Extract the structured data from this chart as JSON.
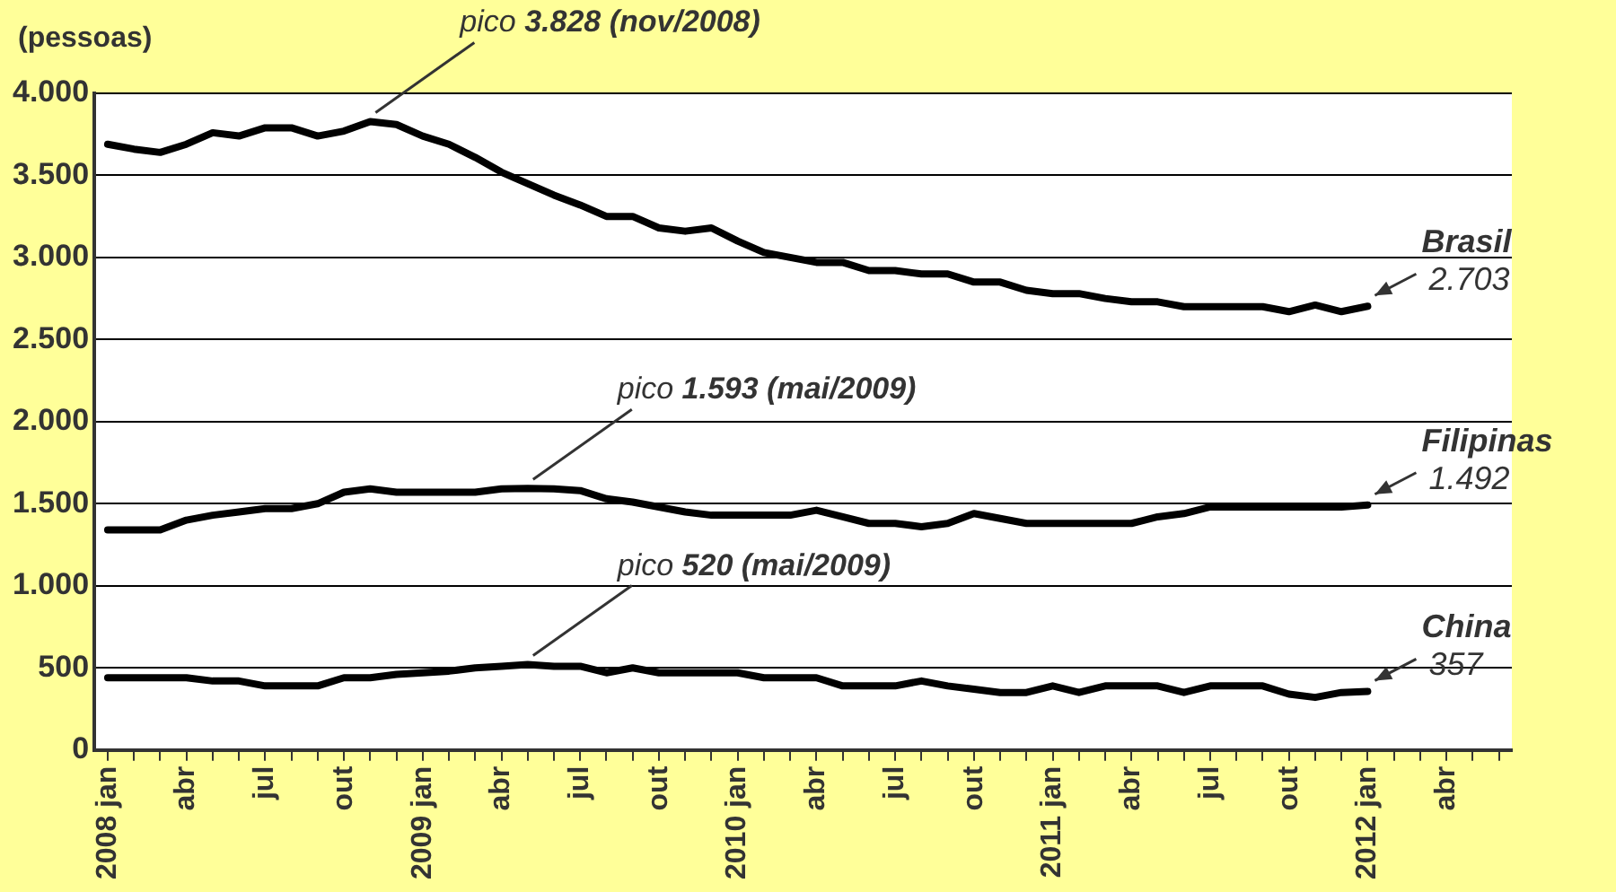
{
  "chart_data": {
    "type": "line",
    "ylabel": "(pessoas)",
    "x": [
      "2008-01",
      "2008-02",
      "2008-03",
      "2008-04",
      "2008-05",
      "2008-06",
      "2008-07",
      "2008-08",
      "2008-09",
      "2008-10",
      "2008-11",
      "2008-12",
      "2009-01",
      "2009-02",
      "2009-03",
      "2009-04",
      "2009-05",
      "2009-06",
      "2009-07",
      "2009-08",
      "2009-09",
      "2009-10",
      "2009-11",
      "2009-12",
      "2010-01",
      "2010-02",
      "2010-03",
      "2010-04",
      "2010-05",
      "2010-06",
      "2010-07",
      "2010-08",
      "2010-09",
      "2010-10",
      "2010-11",
      "2010-12",
      "2011-01",
      "2011-02",
      "2011-03",
      "2011-04",
      "2011-05",
      "2011-06",
      "2011-07",
      "2011-08",
      "2011-09",
      "2011-10",
      "2011-11",
      "2011-12",
      "2012-01"
    ],
    "series": [
      {
        "name": "Brasil",
        "color": "#000000",
        "values": [
          3690,
          3660,
          3640,
          3690,
          3760,
          3740,
          3790,
          3790,
          3740,
          3770,
          3828,
          3810,
          3740,
          3690,
          3610,
          3520,
          3450,
          3380,
          3320,
          3250,
          3250,
          3180,
          3160,
          3180,
          3100,
          3030,
          3000,
          2970,
          2970,
          2920,
          2920,
          2900,
          2900,
          2850,
          2850,
          2800,
          2780,
          2780,
          2750,
          2730,
          2730,
          2700,
          2700,
          2700,
          2700,
          2670,
          2710,
          2670,
          2703
        ],
        "value_labels": [
          null,
          null,
          null,
          null,
          null,
          null,
          null,
          null,
          null,
          null,
          null,
          null,
          null,
          null,
          null,
          null,
          null,
          null,
          null,
          null,
          null,
          null,
          null,
          null,
          null,
          null,
          null,
          null,
          null,
          null,
          null,
          null,
          null,
          null,
          null,
          null,
          null,
          null,
          null,
          null,
          null,
          null,
          null,
          null,
          null,
          null,
          null,
          null,
          "2.703"
        ]
      },
      {
        "name": "Filipinas",
        "color": "#000000",
        "values": [
          1340,
          1340,
          1340,
          1400,
          1430,
          1450,
          1470,
          1470,
          1500,
          1570,
          1590,
          1570,
          1570,
          1570,
          1570,
          1590,
          1593,
          1590,
          1580,
          1530,
          1510,
          1480,
          1450,
          1430,
          1430,
          1430,
          1430,
          1460,
          1420,
          1380,
          1380,
          1360,
          1380,
          1440,
          1410,
          1380,
          1380,
          1380,
          1380,
          1380,
          1420,
          1440,
          1480,
          1480,
          1480,
          1480,
          1480,
          1480,
          1492
        ],
        "value_labels": [
          null,
          null,
          null,
          null,
          null,
          null,
          null,
          null,
          null,
          null,
          null,
          null,
          null,
          null,
          null,
          null,
          null,
          null,
          null,
          null,
          null,
          null,
          null,
          null,
          null,
          null,
          null,
          null,
          null,
          null,
          null,
          null,
          null,
          null,
          null,
          null,
          null,
          null,
          null,
          null,
          null,
          null,
          null,
          null,
          null,
          null,
          null,
          null,
          "1.492"
        ]
      },
      {
        "name": "China",
        "color": "#000000",
        "values": [
          440,
          440,
          440,
          440,
          420,
          420,
          390,
          390,
          390,
          440,
          440,
          460,
          470,
          480,
          500,
          510,
          520,
          510,
          510,
          470,
          500,
          470,
          470,
          470,
          470,
          440,
          440,
          440,
          390,
          390,
          390,
          420,
          390,
          370,
          350,
          350,
          390,
          350,
          390,
          390,
          390,
          350,
          390,
          390,
          390,
          340,
          320,
          350,
          357
        ],
        "value_labels": [
          null,
          null,
          null,
          null,
          null,
          null,
          null,
          null,
          null,
          null,
          null,
          null,
          null,
          null,
          null,
          null,
          null,
          null,
          null,
          null,
          null,
          null,
          null,
          null,
          null,
          null,
          null,
          null,
          null,
          null,
          null,
          null,
          null,
          null,
          null,
          null,
          null,
          null,
          null,
          null,
          null,
          null,
          null,
          null,
          null,
          null,
          null,
          null,
          "357"
        ]
      }
    ],
    "annotations": [
      {
        "text": "pico 3.828 (nov/2008)",
        "x": "2008-11",
        "y": 3828
      },
      {
        "text": "pico 1.593 (mai/2009)",
        "x": "2009-05",
        "y": 1593
      },
      {
        "text": "pico 520 (mai/2009)",
        "x": "2009-05",
        "y": 520
      }
    ],
    "xlim": [
      "2007-12-16",
      "2012-06-16"
    ],
    "xticks": [
      {
        "value": "2008-01",
        "label": "2008 jan"
      },
      {
        "value": "2008-02",
        "label": null
      },
      {
        "value": "2008-03",
        "label": null
      },
      {
        "value": "2008-04",
        "label": "abr"
      },
      {
        "value": "2008-05",
        "label": null
      },
      {
        "value": "2008-06",
        "label": null
      },
      {
        "value": "2008-07",
        "label": "jul"
      },
      {
        "value": "2008-08",
        "label": null
      },
      {
        "value": "2008-09",
        "label": null
      },
      {
        "value": "2008-10",
        "label": "out"
      },
      {
        "value": "2008-11",
        "label": null
      },
      {
        "value": "2008-12",
        "label": null
      },
      {
        "value": "2009-01",
        "label": "2009 jan"
      },
      {
        "value": "2009-02",
        "label": null
      },
      {
        "value": "2009-03",
        "label": null
      },
      {
        "value": "2009-04",
        "label": "abr"
      },
      {
        "value": "2009-05",
        "label": null
      },
      {
        "value": "2009-06",
        "label": null
      },
      {
        "value": "2009-07",
        "label": "jul"
      },
      {
        "value": "2009-08",
        "label": null
      },
      {
        "value": "2009-09",
        "label": null
      },
      {
        "value": "2009-10",
        "label": "out"
      },
      {
        "value": "2009-11",
        "label": null
      },
      {
        "value": "2009-12",
        "label": null
      },
      {
        "value": "2010-01",
        "label": "2010 jan"
      },
      {
        "value": "2010-02",
        "label": null
      },
      {
        "value": "2010-03",
        "label": null
      },
      {
        "value": "2010-04",
        "label": "abr"
      },
      {
        "value": "2010-05",
        "label": null
      },
      {
        "value": "2010-06",
        "label": null
      },
      {
        "value": "2010-07",
        "label": "jul"
      },
      {
        "value": "2010-08",
        "label": null
      },
      {
        "value": "2010-09",
        "label": null
      },
      {
        "value": "2010-10",
        "label": "out"
      },
      {
        "value": "2010-11",
        "label": null
      },
      {
        "value": "2010-12",
        "label": null
      },
      {
        "value": "2011-01",
        "label": "2011 jan"
      },
      {
        "value": "2011-02",
        "label": null
      },
      {
        "value": "2011-03",
        "label": null
      },
      {
        "value": "2011-04",
        "label": "abr"
      },
      {
        "value": "2011-05",
        "label": null
      },
      {
        "value": "2011-06",
        "label": null
      },
      {
        "value": "2011-07",
        "label": "jul"
      },
      {
        "value": "2011-08",
        "label": null
      },
      {
        "value": "2011-09",
        "label": null
      },
      {
        "value": "2011-10",
        "label": "out"
      },
      {
        "value": "2011-11",
        "label": null
      },
      {
        "value": "2011-12",
        "label": null
      },
      {
        "value": "2012-01",
        "label": "2012 jan"
      },
      {
        "value": "2012-02",
        "label": null
      },
      {
        "value": "2012-03",
        "label": null
      },
      {
        "value": "2012-04",
        "label": "abr"
      },
      {
        "value": "2012-05",
        "label": null
      },
      {
        "value": "2012-06",
        "label": null
      }
    ],
    "ylim": [
      0,
      4000
    ],
    "yticks": [
      0,
      500,
      {
        "value": 1000,
        "label": "1.000"
      },
      {
        "value": 1500,
        "label": "1.500"
      },
      {
        "value": 2000,
        "label": "2.000"
      },
      {
        "value": 2500,
        "label": "2.500"
      },
      {
        "value": 3000,
        "label": "3.000"
      },
      {
        "value": 3500,
        "label": "3.500"
      },
      {
        "value": 4000,
        "label": "4.000"
      }
    ],
    "grid": "y",
    "legend": false,
    "marker": "none",
    "line_style": "solid"
  }
}
